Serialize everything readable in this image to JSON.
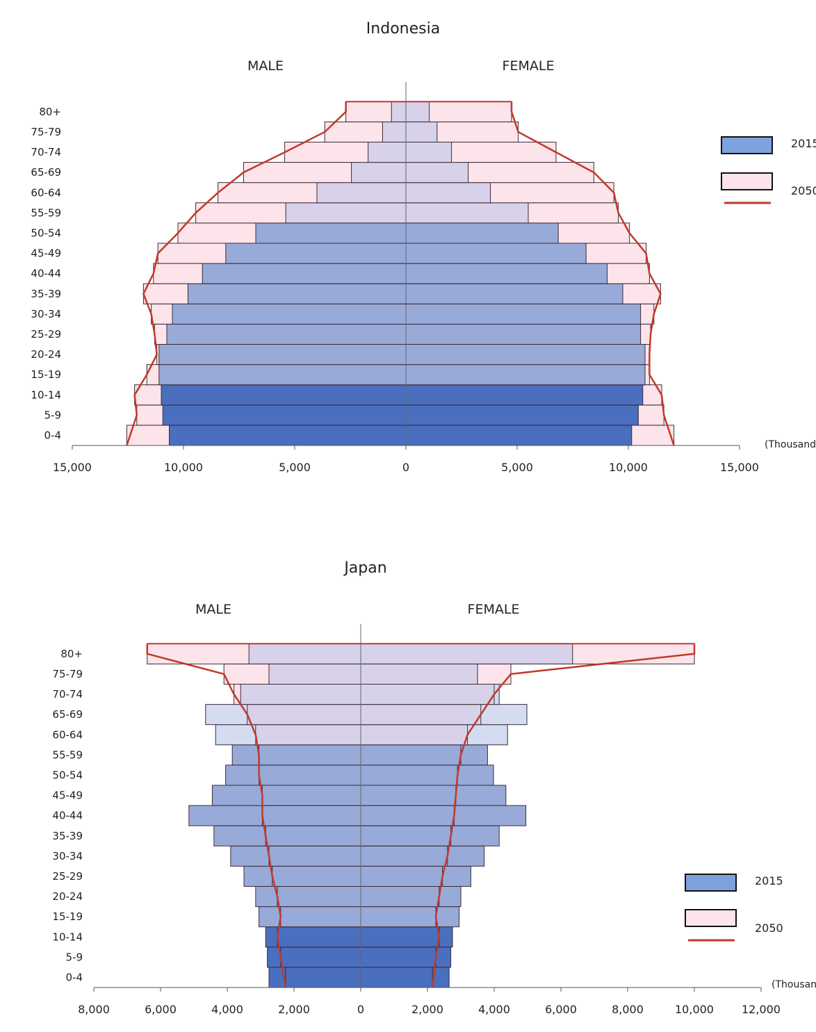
{
  "chart_data": [
    {
      "type": "population-pyramid",
      "title": "Indonesia",
      "male_label": "MALE",
      "female_label": "FEMALE",
      "unit_label": "(Thousand",
      "age_groups": [
        "0-4",
        "5-9",
        "10-14",
        "15-19",
        "20-24",
        "25-29",
        "30-34",
        "35-39",
        "40-44",
        "45-49",
        "50-54",
        "55-59",
        "60-64",
        "65-69",
        "70-74",
        "75-79",
        "80+"
      ],
      "xlim": [
        -15000,
        15000
      ],
      "x_ticks": [
        -15000,
        -10000,
        -5000,
        0,
        5000,
        10000,
        15000
      ],
      "x_tick_labels": [
        "15,000",
        "10,000",
        "5,000",
        "0",
        "5,000",
        "10,000",
        "15,000"
      ],
      "series": [
        {
          "name": "2015",
          "male": [
            10640,
            10930,
            11000,
            11100,
            11100,
            10750,
            10500,
            9800,
            9150,
            8100,
            6750,
            5400,
            4000,
            2450,
            1700,
            1050,
            650
          ],
          "female": [
            10150,
            10450,
            10650,
            10750,
            10750,
            10550,
            10550,
            9750,
            9050,
            8100,
            6850,
            5500,
            3800,
            2800,
            2050,
            1400,
            1050
          ]
        },
        {
          "name": "2050",
          "male": [
            12550,
            12100,
            12200,
            11650,
            11200,
            11300,
            11450,
            11800,
            11350,
            11150,
            10250,
            9450,
            8450,
            7300,
            5450,
            3650,
            2700
          ],
          "female": [
            12050,
            11600,
            11500,
            10950,
            10950,
            11000,
            11150,
            11450,
            10950,
            10800,
            10050,
            9550,
            9350,
            8450,
            6750,
            5050,
            4750
          ]
        }
      ],
      "legend": [
        {
          "label": "2015",
          "color": "#4f78c4"
        },
        {
          "label": "2050",
          "color": "#fce4ea"
        }
      ],
      "legend_placement": "right"
    },
    {
      "type": "population-pyramid",
      "title": "Japan",
      "male_label": "MALE",
      "female_label": "FEMALE",
      "unit_label": "(Thousan",
      "age_groups": [
        "0-4",
        "5-9",
        "10-14",
        "15-19",
        "20-24",
        "25-29",
        "30-34",
        "35-39",
        "40-44",
        "45-49",
        "50-54",
        "55-59",
        "60-64",
        "65-69",
        "70-74",
        "75-79",
        "80+"
      ],
      "xlim": [
        -8000,
        12000
      ],
      "x_ticks": [
        -8000,
        -6000,
        -4000,
        -2000,
        0,
        2000,
        4000,
        6000,
        8000,
        10000,
        12000
      ],
      "x_tick_labels": [
        "8,000",
        "6,000",
        "4,000",
        "2,000",
        "0",
        "2,000",
        "4,000",
        "6,000",
        "8,000",
        "10,000",
        "12,000"
      ],
      "series": [
        {
          "name": "2015",
          "male": [
            2750,
            2800,
            2850,
            3050,
            3150,
            3500,
            3900,
            4400,
            5150,
            4450,
            4050,
            3850,
            4350,
            4650,
            3600,
            2750,
            3350
          ],
          "female": [
            2650,
            2700,
            2750,
            2950,
            3000,
            3300,
            3700,
            4150,
            4950,
            4350,
            3980,
            3800,
            4400,
            4980,
            4150,
            3500,
            6350
          ]
        },
        {
          "name": "2050",
          "male": [
            2250,
            2400,
            2500,
            2400,
            2500,
            2650,
            2750,
            2850,
            2950,
            2950,
            3050,
            3050,
            3150,
            3400,
            3800,
            4100,
            6400
          ],
          "female": [
            2150,
            2250,
            2350,
            2250,
            2350,
            2450,
            2600,
            2700,
            2800,
            2850,
            2900,
            3000,
            3200,
            3600,
            4000,
            4500,
            10000
          ]
        }
      ],
      "legend": [
        {
          "label": "2015",
          "color": "#4f78c4"
        },
        {
          "label": "2050",
          "color": "#fce4ea"
        }
      ],
      "legend_placement": "right"
    }
  ]
}
